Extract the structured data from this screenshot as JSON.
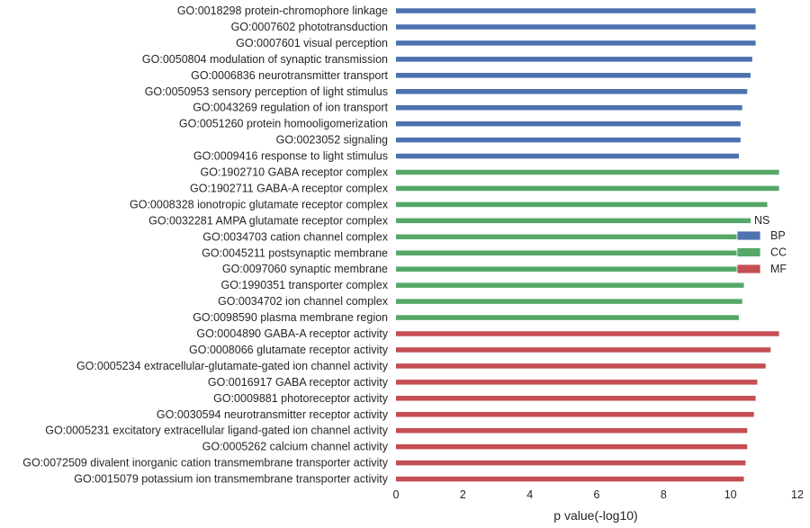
{
  "chart_data": {
    "type": "bar",
    "orientation": "horizontal",
    "title": "",
    "xlabel": "p value(-log10)",
    "ylabel": "",
    "xlim": [
      0,
      12
    ],
    "xticks": [
      "0",
      "2",
      "4",
      "6",
      "8",
      "10",
      "12"
    ],
    "grid": false,
    "legend": {
      "title": "NS",
      "placement": "right",
      "entries": [
        {
          "name": "BP",
          "color": "#4c72b0"
        },
        {
          "name": "CC",
          "color": "#55a868"
        },
        {
          "name": "MF",
          "color": "#c44e52"
        }
      ]
    },
    "bars": [
      {
        "label": "GO:0018298 protein-chromophore linkage",
        "value": 10.75,
        "group": "BP"
      },
      {
        "label": "GO:0007602 phototransduction",
        "value": 10.75,
        "group": "BP"
      },
      {
        "label": "GO:0007601 visual perception",
        "value": 10.75,
        "group": "BP"
      },
      {
        "label": "GO:0050804 modulation of synaptic transmission",
        "value": 10.65,
        "group": "BP"
      },
      {
        "label": "GO:0006836 neurotransmitter transport",
        "value": 10.6,
        "group": "BP"
      },
      {
        "label": "GO:0050953 sensory perception of light stimulus",
        "value": 10.5,
        "group": "BP"
      },
      {
        "label": "GO:0043269 regulation of ion transport",
        "value": 10.35,
        "group": "BP"
      },
      {
        "label": "GO:0051260 protein homooligomerization",
        "value": 10.3,
        "group": "BP"
      },
      {
        "label": "GO:0023052 signaling",
        "value": 10.3,
        "group": "BP"
      },
      {
        "label": "GO:0009416 response to light stimulus",
        "value": 10.25,
        "group": "BP"
      },
      {
        "label": "GO:1902710 GABA receptor complex",
        "value": 11.45,
        "group": "CC"
      },
      {
        "label": "GO:1902711 GABA-A receptor complex",
        "value": 11.45,
        "group": "CC"
      },
      {
        "label": "GO:0008328 ionotropic glutamate receptor complex",
        "value": 11.1,
        "group": "CC"
      },
      {
        "label": "GO:0032281 AMPA glutamate receptor complex",
        "value": 10.6,
        "group": "CC"
      },
      {
        "label": "GO:0034703 cation channel complex",
        "value": 10.55,
        "group": "CC"
      },
      {
        "label": "GO:0045211 postsynaptic membrane",
        "value": 10.5,
        "group": "CC"
      },
      {
        "label": "GO:0097060 synaptic membrane",
        "value": 10.45,
        "group": "CC"
      },
      {
        "label": "GO:1990351 transporter complex",
        "value": 10.4,
        "group": "CC"
      },
      {
        "label": "GO:0034702 ion channel complex",
        "value": 10.35,
        "group": "CC"
      },
      {
        "label": "GO:0098590 plasma membrane region",
        "value": 10.25,
        "group": "CC"
      },
      {
        "label": "GO:0004890 GABA-A receptor activity",
        "value": 11.45,
        "group": "MF"
      },
      {
        "label": "GO:0008066 glutamate receptor activity",
        "value": 11.2,
        "group": "MF"
      },
      {
        "label": "GO:0005234 extracellular-glutamate-gated ion channel activity",
        "value": 11.05,
        "group": "MF"
      },
      {
        "label": "GO:0016917 GABA receptor activity",
        "value": 10.8,
        "group": "MF"
      },
      {
        "label": "GO:0009881 photoreceptor activity",
        "value": 10.75,
        "group": "MF"
      },
      {
        "label": "GO:0030594 neurotransmitter receptor activity",
        "value": 10.7,
        "group": "MF"
      },
      {
        "label": "GO:0005231 excitatory extracellular ligand-gated ion channel activity",
        "value": 10.5,
        "group": "MF"
      },
      {
        "label": "GO:0005262 calcium channel activity",
        "value": 10.5,
        "group": "MF"
      },
      {
        "label": "GO:0072509 divalent inorganic cation transmembrane transporter activity",
        "value": 10.45,
        "group": "MF"
      },
      {
        "label": "GO:0015079 potassium ion transmembrane transporter activity",
        "value": 10.4,
        "group": "MF"
      }
    ]
  }
}
